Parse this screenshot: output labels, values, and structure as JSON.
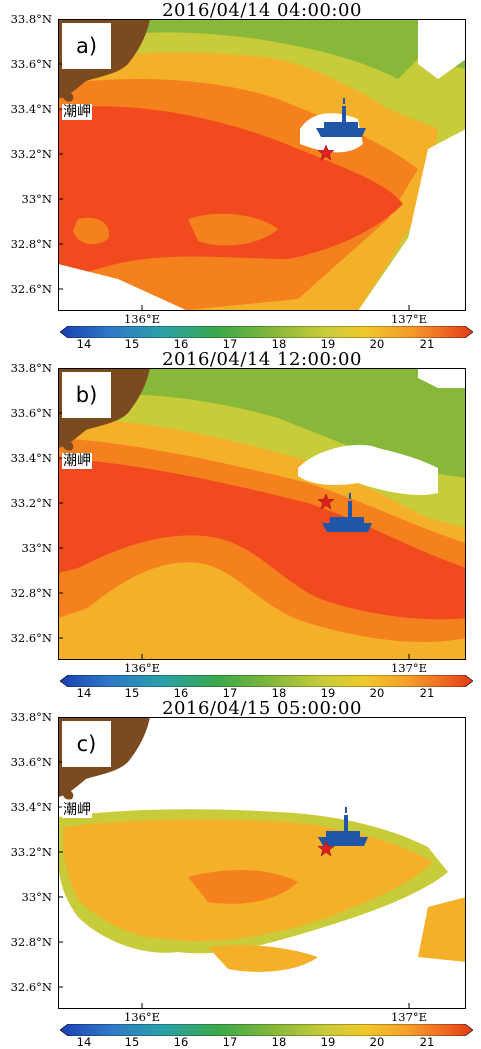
{
  "panels": [
    {
      "label": "a)",
      "title": "2016/04/14 04:00:00"
    },
    {
      "label": "b)",
      "title": "2016/04/14 12:00:00"
    },
    {
      "label": "c)",
      "title": "2016/04/15 05:00:00"
    }
  ],
  "place_name": "潮岬",
  "lat_ticks": [
    "33.8°N",
    "33.6°N",
    "33.4°N",
    "33.2°N",
    "33°N",
    "32.8°N",
    "32.6°N"
  ],
  "lon_ticks": [
    "136°E",
    "137°E"
  ],
  "colorbar_ticks": [
    "14",
    "15",
    "16",
    "17",
    "18",
    "19",
    "20",
    "21"
  ],
  "markers": {
    "ship": "ship-icon",
    "station": "red-star-icon"
  },
  "colors": {
    "land": "#7b4a1e",
    "star": "#e02020",
    "ship": "#1f56a8",
    "sst_21": "#f04a1e",
    "sst_20": "#f5801e",
    "sst_19": "#f5b02a",
    "sst_18": "#c8cc3a",
    "sst_17": "#88b83a"
  }
}
